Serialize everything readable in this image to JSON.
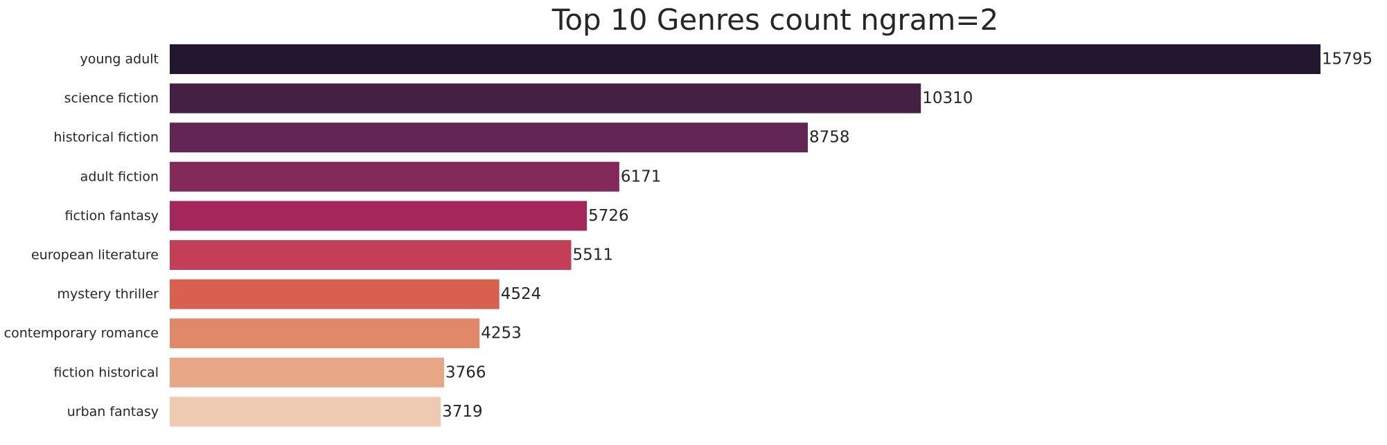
{
  "chart_data": {
    "type": "bar",
    "orientation": "horizontal",
    "title": "Top 10 Genres count ngram=2",
    "xlabel": "",
    "ylabel": "",
    "categories": [
      "young adult",
      "science fiction",
      "historical fiction",
      "adult fiction",
      "fiction fantasy",
      "european literature",
      "mystery thriller",
      "contemporary romance",
      "fiction historical",
      "urban fantasy"
    ],
    "values": [
      15795,
      10310,
      8758,
      6171,
      5726,
      5511,
      4524,
      4253,
      3766,
      3719
    ],
    "xlim": [
      0,
      15795
    ],
    "grid": false,
    "legend": "none",
    "data_labels": true,
    "colors": [
      "#231730",
      "#442044",
      "#622654",
      "#842a5b",
      "#a4275b",
      "#c53e57",
      "#d9604f",
      "#e18869",
      "#e8a888",
      "#eecab2"
    ],
    "text_color": "#262626"
  }
}
